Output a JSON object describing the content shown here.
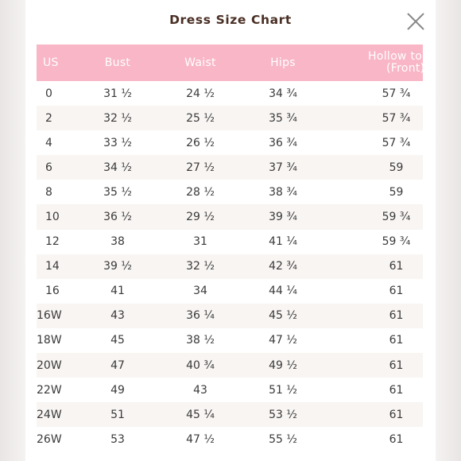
{
  "modal": {
    "title": "Dress Size Chart",
    "close_icon": "close-x-icon"
  },
  "table": {
    "headers": [
      "US",
      "Bust",
      "Waist",
      "Hips",
      "Hollow to Hem (Front)"
    ],
    "header_line1": "Hollow to H",
    "header_line2": "(Front)",
    "rows": [
      [
        "0",
        "31 ½",
        "24 ½",
        "34 ¾",
        "57 ¾"
      ],
      [
        "2",
        "32 ½",
        "25 ½",
        "35 ¾",
        "57 ¾"
      ],
      [
        "4",
        "33 ½",
        "26 ½",
        "36 ¾",
        "57 ¾"
      ],
      [
        "6",
        "34 ½",
        "27 ½",
        "37 ¾",
        "59"
      ],
      [
        "8",
        "35 ½",
        "28 ½",
        "38 ¾",
        "59"
      ],
      [
        "10",
        "36 ½",
        "29 ½",
        "39 ¾",
        "59 ¾"
      ],
      [
        "12",
        "38",
        "31",
        "41 ¼",
        "59 ¾"
      ],
      [
        "14",
        "39 ½",
        "32 ½",
        "42 ¾",
        "61"
      ],
      [
        "16",
        "41",
        "34",
        "44 ¼",
        "61"
      ],
      [
        "16W",
        "43",
        "36 ¼",
        "45 ½",
        "61"
      ],
      [
        "18W",
        "45",
        "38 ½",
        "47 ½",
        "61"
      ],
      [
        "20W",
        "47",
        "40 ¾",
        "49 ½",
        "61"
      ],
      [
        "22W",
        "49",
        "43",
        "51 ½",
        "61"
      ],
      [
        "24W",
        "51",
        "45 ¼",
        "53 ½",
        "61"
      ],
      [
        "26W",
        "53",
        "47 ½",
        "55 ½",
        "61"
      ]
    ]
  },
  "colors": {
    "header_bg": "#f9b6c7",
    "title_color": "#4a2f25",
    "row_alt_bg": "#f8f5f3"
  }
}
